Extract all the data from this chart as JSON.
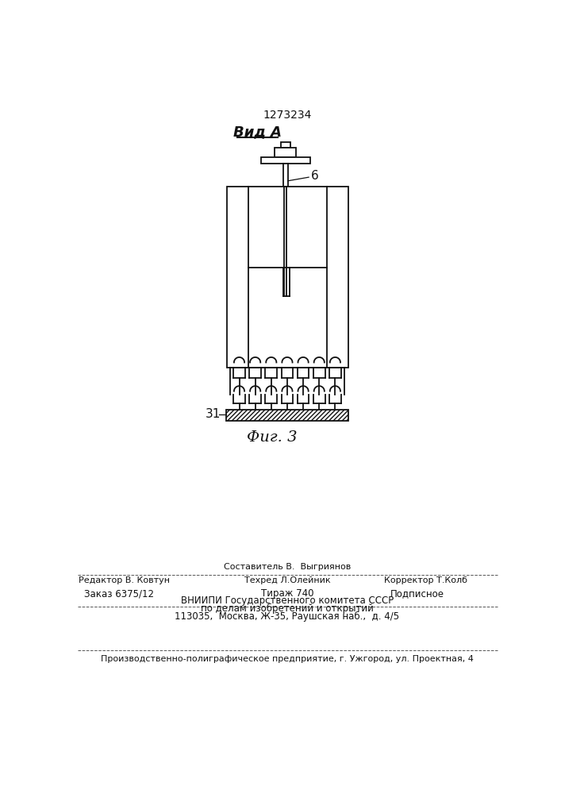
{
  "patent_number": "1273234",
  "view_label": "Вид А",
  "fig_label": "Фиг. 3",
  "label_6": "6",
  "label_31": "31",
  "bg_color": "#ffffff",
  "lc": "#111111",
  "n_springs": 7,
  "footer": {
    "row_sestavitel": "Составитель В.  Выгриянов",
    "row_editor": "Редактор В. Ковтун",
    "row_techred": "Техред Л.Олейник",
    "row_korrektor": "Корректор Т.Колб",
    "row_zakaz": "Заказ 6375/12",
    "row_tirazh": "Тираж 740",
    "row_podpisnoe": "Подписное",
    "row_vniipи1": "ВНИИПИ Государственного комитета СССР",
    "row_vniipи2": "по делам изобретений и открытий",
    "row_vniipи3": "113035,  Москва, Ж-35, Раушская наб.,  д. 4/5",
    "row_bottom": "Производственно-полиграфическое предприятие, г. Ужгород, ул. Проектная, 4"
  }
}
